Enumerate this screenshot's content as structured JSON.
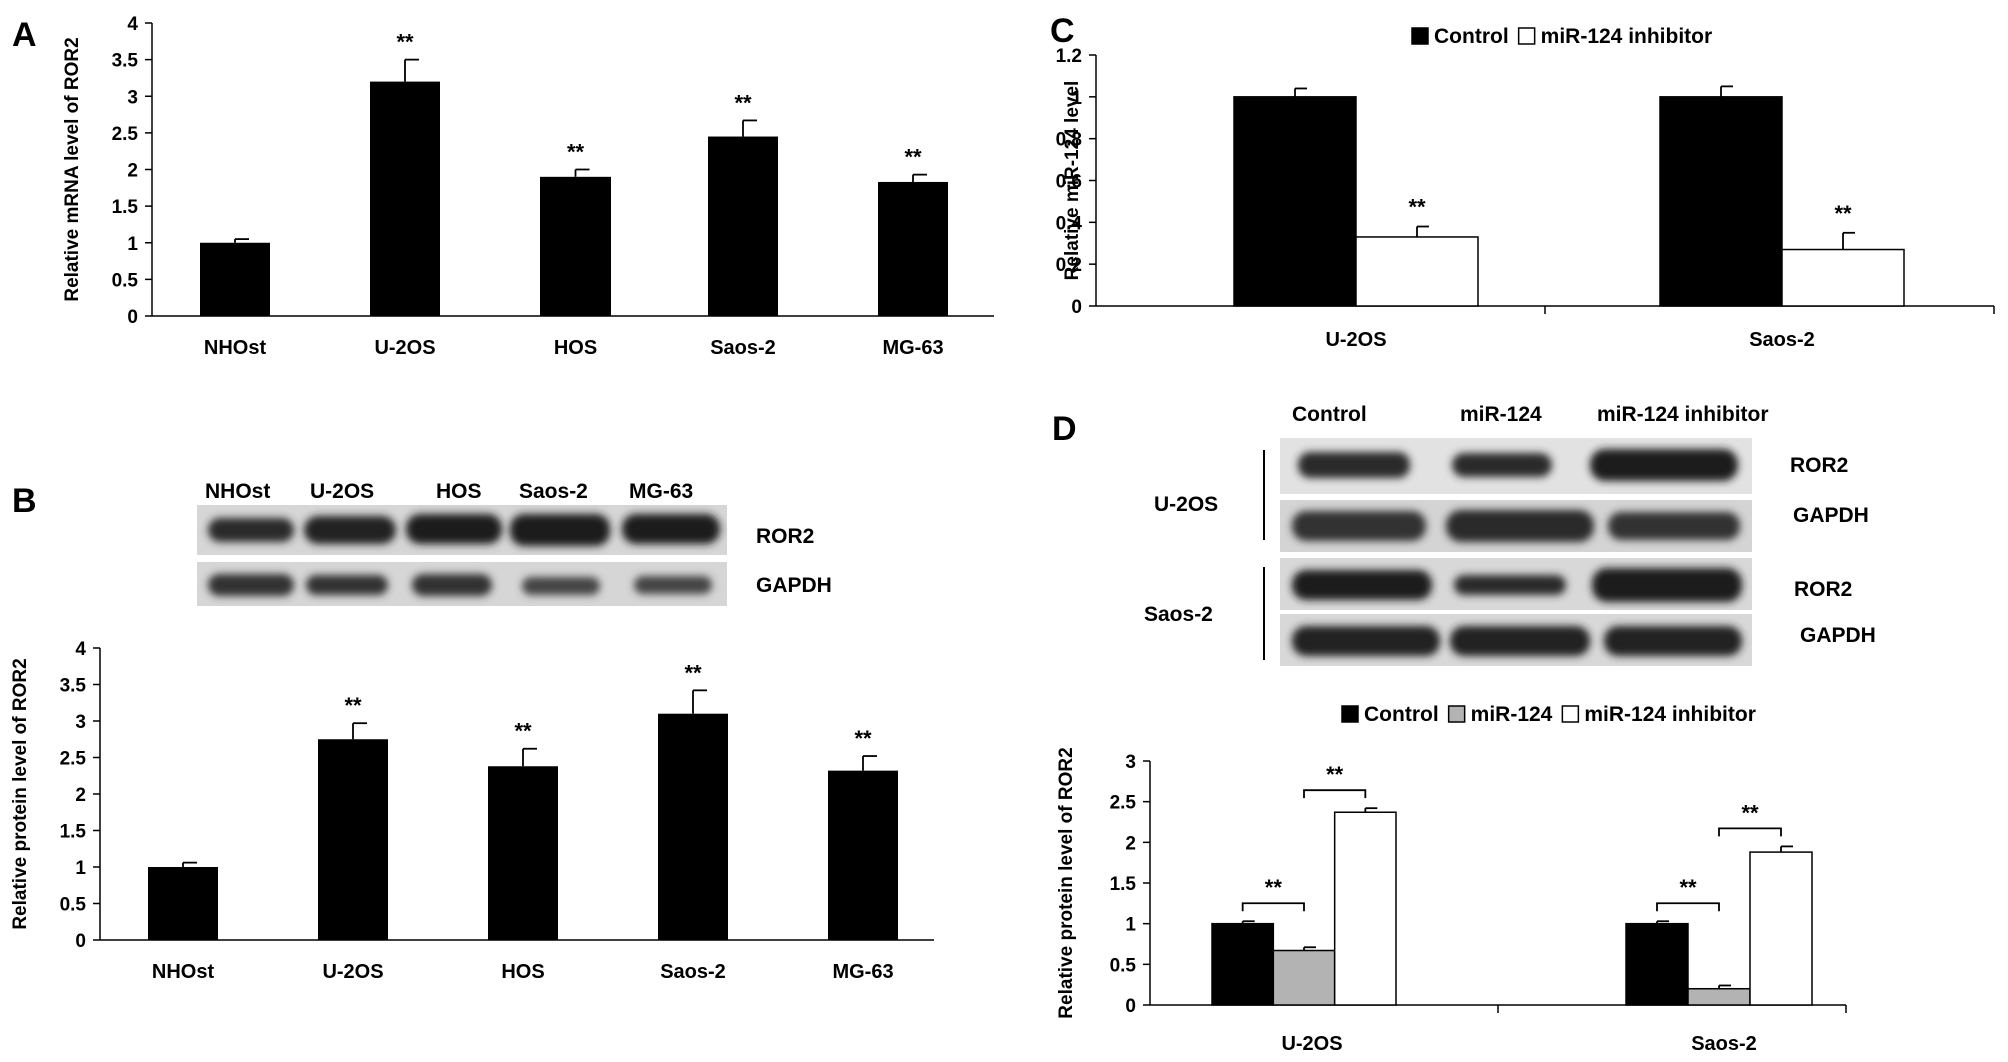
{
  "colors": {
    "Control": "#000000",
    "miR-124": "#b3b3b3",
    "miR-124 inhibitor": "#ffffff",
    "bar_single": "#000000"
  },
  "chart_data": [
    {
      "panel": "A",
      "type": "bar",
      "ylabel": "Relative mRNA level of ROR2",
      "categories": [
        "NHOst",
        "U-2OS",
        "HOS",
        "Saos-2",
        "MG-63"
      ],
      "values": [
        1.0,
        3.2,
        1.9,
        2.45,
        1.83
      ],
      "errors": [
        0.05,
        0.3,
        0.1,
        0.22,
        0.1
      ],
      "significance": [
        "",
        "**",
        "**",
        "**",
        "**"
      ],
      "ylim": [
        0,
        4
      ],
      "yticks": [
        "0",
        "0.5",
        "1",
        "1.5",
        "2",
        "2.5",
        "3",
        "3.5",
        "4"
      ]
    },
    {
      "panel": "B",
      "type": "bar",
      "ylabel": "Relative protein level of ROR2",
      "categories": [
        "NHOst",
        "U-2OS",
        "HOS",
        "Saos-2",
        "MG-63"
      ],
      "values": [
        1.0,
        2.75,
        2.38,
        3.1,
        2.32
      ],
      "errors": [
        0.06,
        0.22,
        0.24,
        0.32,
        0.2
      ],
      "significance": [
        "",
        "**",
        "**",
        "**",
        "**"
      ],
      "ylim": [
        0,
        4
      ],
      "yticks": [
        "0",
        "0.5",
        "1",
        "1.5",
        "2",
        "2.5",
        "3",
        "3.5",
        "4"
      ]
    },
    {
      "panel": "C",
      "type": "bar",
      "ylabel": "Relative miR-124 level",
      "categories": [
        "U-2OS",
        "Saos-2"
      ],
      "series": [
        {
          "name": "Control",
          "values": [
            1.0,
            1.0
          ],
          "errors": [
            0.04,
            0.05
          ],
          "significance": [
            "",
            ""
          ]
        },
        {
          "name": "miR-124 inhibitor",
          "values": [
            0.33,
            0.27
          ],
          "errors": [
            0.05,
            0.08
          ],
          "significance": [
            "**",
            "**"
          ]
        }
      ],
      "ylim": [
        0,
        1.2
      ],
      "yticks": [
        "0",
        "0.2",
        "0.4",
        "0.6",
        "0.8",
        "1",
        "1.2"
      ],
      "legend": "top-center"
    },
    {
      "panel": "D",
      "type": "bar",
      "ylabel": "Relative protein level of ROR2",
      "categories": [
        "U-2OS",
        "Saos-2"
      ],
      "series": [
        {
          "name": "Control",
          "values": [
            1.0,
            1.0
          ],
          "errors": [
            0.03,
            0.03
          ]
        },
        {
          "name": "miR-124",
          "values": [
            0.67,
            0.2
          ],
          "errors": [
            0.04,
            0.04
          ]
        },
        {
          "name": "miR-124 inhibitor",
          "values": [
            2.37,
            1.88
          ],
          "errors": [
            0.05,
            0.07
          ]
        }
      ],
      "brackets": [
        {
          "group": 0,
          "from": 0,
          "to": 1,
          "label": "**"
        },
        {
          "group": 0,
          "from": 1,
          "to": 2,
          "label": "**"
        },
        {
          "group": 1,
          "from": 0,
          "to": 1,
          "label": "**"
        },
        {
          "group": 1,
          "from": 1,
          "to": 2,
          "label": "**"
        }
      ],
      "ylim": [
        0,
        3
      ],
      "yticks": [
        "0",
        "0.5",
        "1",
        "1.5",
        "2",
        "2.5",
        "3"
      ],
      "legend": "top-center"
    }
  ],
  "panel_letters": [
    "A",
    "B",
    "C",
    "D"
  ],
  "blot_B": {
    "lanes": [
      "NHOst",
      "U-2OS",
      "HOS",
      "Saos-2",
      "MG-63"
    ],
    "rows": [
      "ROR2",
      "GAPDH"
    ]
  },
  "blot_D": {
    "lanes": [
      "Control",
      "miR-124",
      "miR-124 inhibitor"
    ],
    "cell_lines": [
      "U-2OS",
      "Saos-2"
    ],
    "rows": [
      "ROR2",
      "GAPDH",
      "ROR2",
      "GAPDH"
    ]
  }
}
